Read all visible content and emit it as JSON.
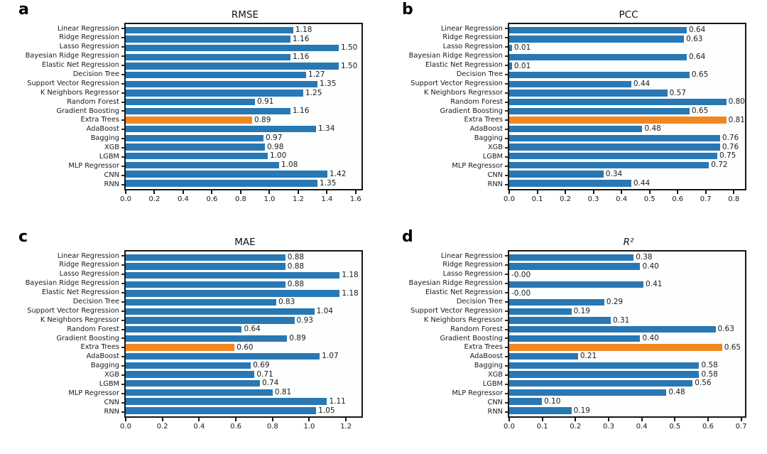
{
  "figure": {
    "background": "#ffffff",
    "description": "2x2 grid of horizontal bar charts comparing 18 regression models on four metrics; Extra Trees bar highlighted in orange in every panel"
  },
  "colors": {
    "bar": "#2878b4",
    "highlight": "#f28722",
    "spine": "#161616",
    "text": "#1a1a1a"
  },
  "highlight_model": "Extra Trees",
  "chart_data": [
    {
      "type": "bar",
      "orientation": "horizontal",
      "panel_label": "a",
      "title": "RMSE",
      "title_italic": false,
      "categories": [
        "Linear Regression",
        "Ridge Regression",
        "Lasso Regression",
        "Bayesian Ridge Regression",
        "Elastic Net Regression",
        "Decision Tree",
        "Support Vector Regression",
        "K Neighbors Regressor",
        "Random Forest",
        "Gradient Boosting",
        "Extra Trees",
        "AdaBoost",
        "Bagging",
        "XGB",
        "LGBM",
        "MLP Regressor",
        "CNN",
        "RNN"
      ],
      "values": [
        1.18,
        1.16,
        1.5,
        1.16,
        1.5,
        1.27,
        1.35,
        1.25,
        0.91,
        1.16,
        0.89,
        1.34,
        0.97,
        0.98,
        1.0,
        1.08,
        1.42,
        1.35
      ],
      "value_labels": [
        "1.18",
        "1.16",
        "1.50",
        "1.16",
        "1.50",
        "1.27",
        "1.35",
        "1.25",
        "0.91",
        "1.16",
        "0.89",
        "1.34",
        "0.97",
        "0.98",
        "1.00",
        "1.08",
        "1.42",
        "1.35"
      ],
      "highlight_index": 10,
      "xlim": [
        0,
        1.66
      ],
      "xticks": [
        "0.0",
        "0.2",
        "0.4",
        "0.6",
        "0.8",
        "1.0",
        "1.2",
        "1.4",
        "1.6"
      ],
      "xtick_values": [
        0.0,
        0.2,
        0.4,
        0.6,
        0.8,
        1.0,
        1.2,
        1.4,
        1.6
      ],
      "grid": false,
      "legend": "none"
    },
    {
      "type": "bar",
      "orientation": "horizontal",
      "panel_label": "b",
      "title": "PCC",
      "title_italic": false,
      "categories": [
        "Linear Regression",
        "Ridge Regression",
        "Lasso Regression",
        "Bayesian Ridge Regression",
        "Elastic Net Regression",
        "Decision Tree",
        "Support Vector Regression",
        "K Neighbors Regressor",
        "Random Forest",
        "Gradient Boosting",
        "Extra Trees",
        "AdaBoost",
        "Bagging",
        "XGB",
        "LGBM",
        "MLP Regressor",
        "CNN",
        "RNN"
      ],
      "values": [
        0.64,
        0.63,
        0.01,
        0.64,
        0.01,
        0.65,
        0.44,
        0.57,
        0.8,
        0.65,
        0.81,
        0.48,
        0.76,
        0.76,
        0.75,
        0.72,
        0.34,
        0.44
      ],
      "value_labels": [
        "0.64",
        "0.63",
        "0.01",
        "0.64",
        "0.01",
        "0.65",
        "0.44",
        "0.57",
        "0.80",
        "0.65",
        "0.81",
        "0.48",
        "0.76",
        "0.76",
        "0.75",
        "0.72",
        "0.34",
        "0.44"
      ],
      "highlight_index": 10,
      "xlim": [
        0,
        0.85
      ],
      "xticks": [
        "0.0",
        "0.1",
        "0.2",
        "0.3",
        "0.4",
        "0.5",
        "0.6",
        "0.7",
        "0.8"
      ],
      "xtick_values": [
        0.0,
        0.1,
        0.2,
        0.3,
        0.4,
        0.5,
        0.6,
        0.7,
        0.8
      ],
      "grid": false,
      "legend": "none"
    },
    {
      "type": "bar",
      "orientation": "horizontal",
      "panel_label": "c",
      "title": "MAE",
      "title_italic": false,
      "categories": [
        "Linear Regression",
        "Ridge Regression",
        "Lasso Regression",
        "Bayesian Ridge Regression",
        "Elastic Net Regression",
        "Decision Tree",
        "Support Vector Regression",
        "K Neighbors Regressor",
        "Random Forest",
        "Gradient Boosting",
        "Extra Trees",
        "AdaBoost",
        "Bagging",
        "XGB",
        "LGBM",
        "MLP Regressor",
        "CNN",
        "RNN"
      ],
      "values": [
        0.88,
        0.88,
        1.18,
        0.88,
        1.18,
        0.83,
        1.04,
        0.93,
        0.64,
        0.89,
        0.6,
        1.07,
        0.69,
        0.71,
        0.74,
        0.81,
        1.11,
        1.05
      ],
      "value_labels": [
        "0.88",
        "0.88",
        "1.18",
        "0.88",
        "1.18",
        "0.83",
        "1.04",
        "0.93",
        "0.64",
        "0.89",
        "0.60",
        "1.07",
        "0.69",
        "0.71",
        "0.74",
        "0.81",
        "1.11",
        "1.05"
      ],
      "highlight_index": 10,
      "xlim": [
        0,
        1.3
      ],
      "xticks": [
        "0.0",
        "0.2",
        "0.4",
        "0.6",
        "0.8",
        "1.0",
        "1.2"
      ],
      "xtick_values": [
        0.0,
        0.2,
        0.4,
        0.6,
        0.8,
        1.0,
        1.2
      ],
      "grid": false,
      "legend": "none"
    },
    {
      "type": "bar",
      "orientation": "horizontal",
      "panel_label": "d",
      "title": "R²",
      "title_italic": true,
      "categories": [
        "Linear Regression",
        "Ridge Regression",
        "Lasso Regression",
        "Bayesian Ridge Regression",
        "Elastic Net Regression",
        "Decision Tree",
        "Support Vector Regression",
        "K Neighbors Regressor",
        "Random Forest",
        "Gradient Boosting",
        "Extra Trees",
        "AdaBoost",
        "Bagging",
        "XGB",
        "LGBM",
        "MLP Regressor",
        "CNN",
        "RNN"
      ],
      "values": [
        0.38,
        0.4,
        0.0,
        0.41,
        0.0,
        0.29,
        0.19,
        0.31,
        0.63,
        0.4,
        0.65,
        0.21,
        0.58,
        0.58,
        0.56,
        0.48,
        0.1,
        0.19
      ],
      "value_labels": [
        "0.38",
        "0.40",
        "-0.00",
        "0.41",
        "-0.00",
        "0.29",
        "0.19",
        "0.31",
        "0.63",
        "0.40",
        "0.65",
        "0.21",
        "0.58",
        "0.58",
        "0.56",
        "0.48",
        "0.10",
        "0.19"
      ],
      "highlight_index": 10,
      "xlim": [
        0,
        0.72
      ],
      "xticks": [
        "0.0",
        "0.1",
        "0.2",
        "0.3",
        "0.4",
        "0.5",
        "0.6",
        "0.7"
      ],
      "xtick_values": [
        0.0,
        0.1,
        0.2,
        0.3,
        0.4,
        0.5,
        0.6,
        0.7
      ],
      "grid": false,
      "legend": "none"
    }
  ]
}
